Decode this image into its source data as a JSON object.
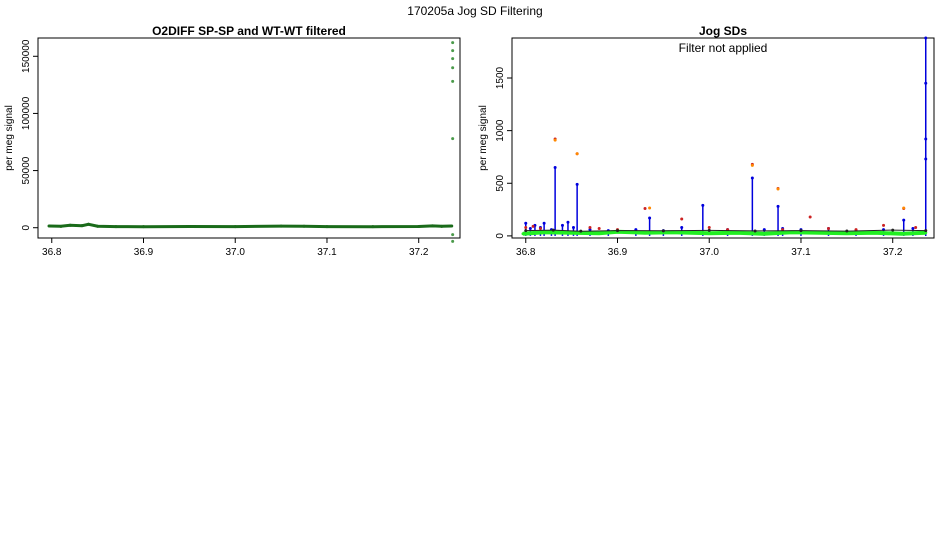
{
  "page_title": "170205a   Jog SD Filtering",
  "chart_data": [
    {
      "type": "scatter",
      "title": "O2DIFF SP-SP and WT-WT filtered",
      "xlabel": "",
      "ylabel": "per meg signal",
      "xlim": [
        36.785,
        37.245
      ],
      "ylim": [
        -9000,
        166000
      ],
      "x_ticks": [
        36.8,
        36.9,
        37.0,
        37.1,
        37.2
      ],
      "x_tick_labels": [
        "36.8",
        "36.9",
        "37.0",
        "37.1",
        "37.2"
      ],
      "y_ticks": [
        0,
        50000,
        100000,
        150000
      ],
      "y_tick_labels": [
        "0",
        "50000",
        "100000",
        "150000"
      ],
      "grid": false,
      "series": [
        {
          "color": "#1a6b1a",
          "x": [
            36.797,
            36.81,
            36.82,
            36.833,
            36.84,
            36.85,
            36.87,
            36.9,
            36.95,
            37.0,
            37.05,
            37.075,
            37.1,
            37.15,
            37.2,
            37.215,
            37.225,
            37.236
          ],
          "y": [
            1500,
            1200,
            2200,
            1800,
            3000,
            1300,
            1000,
            900,
            1100,
            1000,
            1400,
            1300,
            1000,
            900,
            1100,
            1600,
            1200,
            1500
          ]
        },
        {
          "color": "#4a9a4a",
          "x": [
            37.237,
            37.237,
            37.237,
            37.237,
            37.237,
            37.237,
            37.237,
            37.237
          ],
          "y": [
            162000,
            155000,
            148000,
            140000,
            128000,
            78000,
            -6000,
            -12000
          ]
        }
      ]
    },
    {
      "type": "scatter",
      "title": "Jog SDs",
      "annotation": "Filter not applied",
      "xlabel": "",
      "ylabel": "per meg signal",
      "xlim": [
        36.785,
        37.245
      ],
      "ylim": [
        -20,
        1880
      ],
      "x_ticks": [
        36.8,
        36.9,
        37.0,
        37.1,
        37.2
      ],
      "x_tick_labels": [
        "36.8",
        "36.9",
        "37.0",
        "37.1",
        "37.2"
      ],
      "y_ticks": [
        0,
        500,
        1000,
        1500
      ],
      "y_tick_labels": [
        "0",
        "500",
        "1000",
        "1500"
      ],
      "grid": false,
      "series": [
        {
          "color": "#0000dd",
          "x": [
            36.8,
            36.805,
            36.81,
            36.816,
            36.82,
            36.828,
            36.832,
            36.84,
            36.846,
            36.852,
            36.856,
            36.87,
            36.89,
            36.92,
            36.935,
            36.95,
            36.97,
            36.993,
            37.02,
            37.047,
            37.06,
            37.075,
            37.08,
            37.1,
            37.13,
            37.16,
            37.19,
            37.212,
            37.222,
            37.236,
            37.236,
            37.236,
            37.236
          ],
          "y": [
            120,
            70,
            100,
            80,
            120,
            60,
            650,
            100,
            130,
            80,
            490,
            60,
            50,
            60,
            170,
            50,
            80,
            290,
            60,
            550,
            60,
            280,
            70,
            60,
            70,
            50,
            60,
            150,
            70,
            1880,
            1450,
            920,
            730
          ]
        },
        {
          "color": "#cc2222",
          "x": [
            36.8,
            36.808,
            36.816,
            36.832,
            36.856,
            36.87,
            36.88,
            36.9,
            36.93,
            36.97,
            37.0,
            37.02,
            37.047,
            37.075,
            37.08,
            37.11,
            37.13,
            37.16,
            37.19,
            37.212,
            37.225
          ],
          "y": [
            80,
            90,
            70,
            920,
            780,
            80,
            70,
            60,
            260,
            160,
            80,
            60,
            680,
            450,
            60,
            180,
            70,
            60,
            100,
            260,
            80
          ]
        },
        {
          "color": "#ff8800",
          "x": [
            36.832,
            36.856,
            36.935,
            37.047,
            37.075,
            37.212
          ],
          "y": [
            910,
            780,
            265,
            670,
            445,
            265
          ]
        },
        {
          "color": "#22ee22",
          "x": [
            36.797,
            36.82,
            36.85,
            36.88,
            36.9,
            36.93,
            36.96,
            37.0,
            37.03,
            37.06,
            37.09,
            37.12,
            37.15,
            37.18,
            37.21,
            37.236
          ],
          "y": [
            20,
            35,
            30,
            25,
            40,
            30,
            35,
            25,
            30,
            20,
            35,
            30,
            25,
            30,
            20,
            30
          ]
        },
        {
          "color": "#222222",
          "x": [
            36.8,
            36.83,
            36.86,
            36.9,
            36.95,
            37.0,
            37.05,
            37.1,
            37.15,
            37.2,
            37.236
          ],
          "y": [
            50,
            55,
            45,
            50,
            48,
            52,
            47,
            50,
            46,
            55,
            50
          ]
        }
      ]
    }
  ]
}
